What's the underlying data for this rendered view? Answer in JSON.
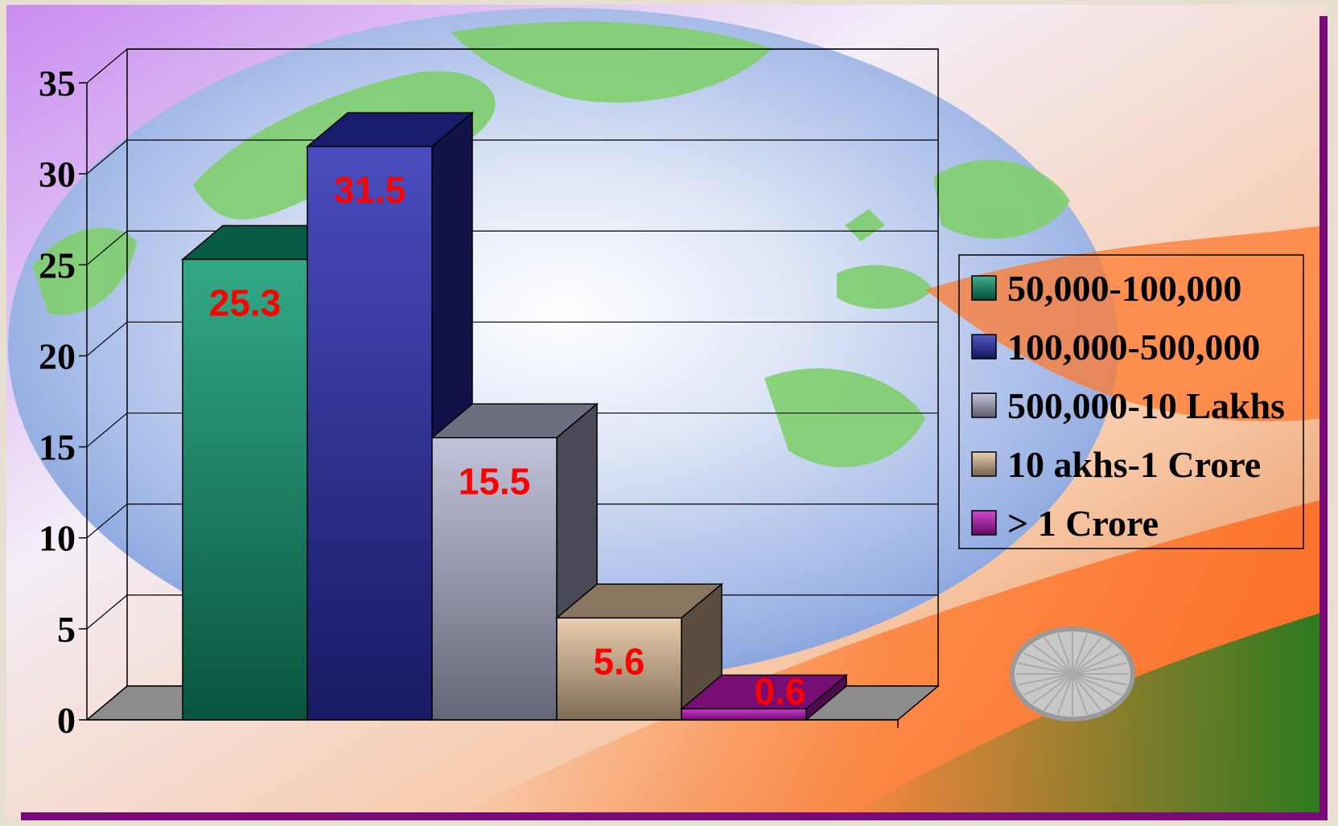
{
  "chart_data": {
    "type": "bar",
    "title": "",
    "xlabel": "",
    "ylabel": "",
    "ylim": [
      0,
      35
    ],
    "yticks": [
      0,
      5,
      10,
      15,
      20,
      25,
      30,
      35
    ],
    "grid": true,
    "legend_position": "right",
    "series": [
      {
        "name": "50,000-100,000",
        "value": 25.3,
        "label": "25.3",
        "color": "#0f9a72"
      },
      {
        "name": "100,000-500,000",
        "value": 31.5,
        "label": "31.5",
        "color": "#2a2eb4"
      },
      {
        "name": "500,000-10 Lakhs",
        "value": 15.5,
        "label": "15.5",
        "color": "#b6b8d6"
      },
      {
        "name": "10 akhs-1 Crore",
        "value": 5.6,
        "label": "5.6",
        "color": "#e6c49e"
      },
      {
        "name": "> 1 Crore",
        "value": 0.6,
        "label": "0.6",
        "color": "#c418c4"
      }
    ],
    "data_label_color": "#ff0000"
  }
}
